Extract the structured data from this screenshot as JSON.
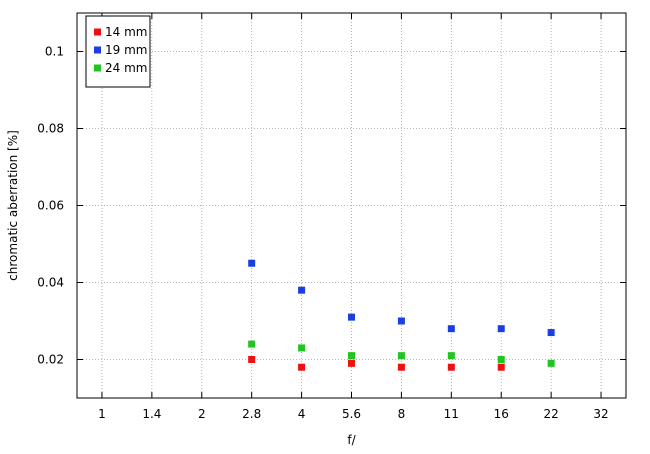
{
  "chart_data": {
    "type": "scatter",
    "title": "",
    "xlabel": "f/",
    "ylabel": "chromatic aberration [%]",
    "x_categories": [
      "1",
      "1.4",
      "2",
      "2.8",
      "4",
      "5.6",
      "8",
      "11",
      "16",
      "22",
      "32"
    ],
    "yticks": [
      "0.02",
      "0.04",
      "0.06",
      "0.08",
      "0.1"
    ],
    "ylim": [
      0.01,
      0.11
    ],
    "grid": true,
    "legend_position": "top-left",
    "series": [
      {
        "name": "14 mm",
        "color": "#ee1111",
        "points": [
          {
            "x": "2.8",
            "y": 0.02
          },
          {
            "x": "4",
            "y": 0.018
          },
          {
            "x": "5.6",
            "y": 0.019
          },
          {
            "x": "8",
            "y": 0.018
          },
          {
            "x": "11",
            "y": 0.018
          },
          {
            "x": "16",
            "y": 0.018
          }
        ]
      },
      {
        "name": "19 mm",
        "color": "#1a3fe0",
        "points": [
          {
            "x": "2.8",
            "y": 0.045
          },
          {
            "x": "4",
            "y": 0.038
          },
          {
            "x": "5.6",
            "y": 0.031
          },
          {
            "x": "8",
            "y": 0.03
          },
          {
            "x": "11",
            "y": 0.028
          },
          {
            "x": "16",
            "y": 0.028
          },
          {
            "x": "22",
            "y": 0.027
          }
        ]
      },
      {
        "name": "24 mm",
        "color": "#22c422",
        "points": [
          {
            "x": "2.8",
            "y": 0.024
          },
          {
            "x": "4",
            "y": 0.023
          },
          {
            "x": "5.6",
            "y": 0.021
          },
          {
            "x": "8",
            "y": 0.021
          },
          {
            "x": "11",
            "y": 0.021
          },
          {
            "x": "16",
            "y": 0.02
          },
          {
            "x": "22",
            "y": 0.019
          }
        ]
      }
    ]
  }
}
